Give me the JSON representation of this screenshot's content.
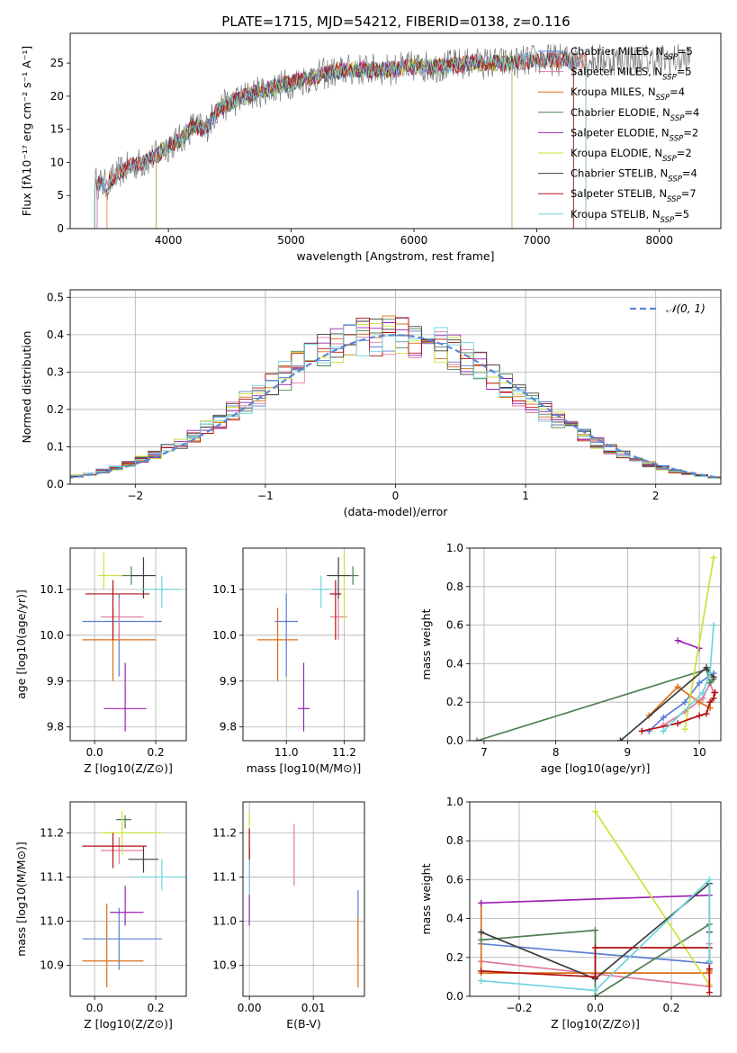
{
  "palette": {
    "chabrier_miles": "#5b7fd6",
    "salpeter_miles": "#e07a9f",
    "kroupa_miles": "#d96f1a",
    "chabrier_elodie": "#4f7f52",
    "salpeter_elodie": "#9a22b5",
    "kroupa_elodie": "#cfe03a",
    "chabrier_stelib": "#3f3f3f",
    "salpeter_stelib": "#b01010",
    "kroupa_stelib": "#6fd4dc"
  },
  "chart_data": [
    {
      "id": "spectrum",
      "type": "line",
      "title": "PLATE=1715, MJD=54212, FIBERID=0138, z=0.116",
      "xlabel": "wavelength [Angstrom, rest frame]",
      "ylabel": "Flux [fλ10⁻¹⁷ erg cm⁻² s⁻¹ A⁻¹]",
      "xlim": [
        3200,
        8500
      ],
      "ylim": [
        0,
        29.5
      ],
      "xticks": [
        4000,
        5000,
        6000,
        7000,
        8000
      ],
      "yticks": [
        0,
        5,
        10,
        15,
        20,
        25
      ],
      "legend_position": "top-right",
      "legend": [
        "Chabrier MILES, N_SSP=5",
        "Salpeter MILES, N_SSP=5",
        "Kroupa MILES, N_SSP=4",
        "Chabrier ELODIE, N_SSP=4",
        "Salpeter ELODIE, N_SSP=2",
        "Kroupa ELODIE, N_SSP=2",
        "Chabrier STELIB, N_SSP=4",
        "Salpeter STELIB, N_SSP=7",
        "Kroupa STELIB, N_SSP=5"
      ],
      "continuum": {
        "x": [
          3400,
          3500,
          3600,
          3700,
          3800,
          3900,
          4000,
          4100,
          4200,
          4300,
          4400,
          4500,
          4700,
          4900,
          5100,
          5300,
          5500,
          5800,
          6000,
          6200,
          6500,
          6800,
          7000,
          7200,
          7500,
          7800,
          8000,
          8200
        ],
        "y": [
          7,
          6.5,
          8.5,
          9.5,
          10,
          11,
          12.5,
          13.5,
          15.5,
          15,
          18,
          19,
          20.5,
          21.5,
          22.5,
          23.5,
          24,
          24,
          24.5,
          24.5,
          25,
          25,
          25.5,
          25.5,
          25.5,
          25.5,
          25.5,
          25.5
        ]
      }
    },
    {
      "id": "residuals",
      "type": "histogram",
      "xlabel": "(data-model)/error",
      "ylabel": "Normed distribution",
      "xlim": [
        -2.5,
        2.5
      ],
      "ylim": [
        0,
        0.52
      ],
      "xticks": [
        -2,
        -1,
        0,
        1,
        2
      ],
      "yticks": [
        0,
        0.1,
        0.2,
        0.3,
        0.4,
        0.5
      ],
      "legend_position": "top-right",
      "legend": [
        "N(0, 1)"
      ],
      "bin_width": 0.1
    },
    {
      "id": "age_vs_Z",
      "type": "errorbar",
      "xlabel": "Z [log10(Z/Z⊙)]",
      "ylabel": "age  [log10(age/yr)]",
      "xlim": [
        -0.08,
        0.3
      ],
      "ylim": [
        9.77,
        10.19
      ],
      "xticks": [
        0.0,
        0.2
      ],
      "yticks": [
        9.8,
        9.9,
        10.0,
        10.1
      ],
      "points": [
        {
          "s": "chabrier_miles",
          "x": 0.08,
          "xerr": [
            0.12,
            0.14
          ],
          "y": 10.03,
          "yerr": [
            0.12,
            0.06
          ]
        },
        {
          "s": "salpeter_miles",
          "x": 0.08,
          "xerr": [
            0.06,
            0.08
          ],
          "y": 10.04,
          "yerr": [
            0.05,
            0.04
          ]
        },
        {
          "s": "kroupa_miles",
          "x": 0.06,
          "xerr": [
            0.1,
            0.14
          ],
          "y": 9.99,
          "yerr": [
            0.09,
            0.07
          ]
        },
        {
          "s": "chabrier_elodie",
          "x": 0.12,
          "xerr": [
            0.04,
            0.04
          ],
          "y": 10.13,
          "yerr": [
            0.02,
            0.02
          ]
        },
        {
          "s": "salpeter_elodie",
          "x": 0.1,
          "xerr": [
            0.07,
            0.07
          ],
          "y": 9.84,
          "yerr": [
            0.05,
            0.1
          ]
        },
        {
          "s": "kroupa_elodie",
          "x": 0.03,
          "xerr": [
            0.02,
            0.06
          ],
          "y": 10.13,
          "yerr": [
            0.03,
            0.05
          ]
        },
        {
          "s": "chabrier_stelib",
          "x": 0.16,
          "xerr": [
            0.04,
            0.04
          ],
          "y": 10.13,
          "yerr": [
            0.05,
            0.04
          ]
        },
        {
          "s": "salpeter_stelib",
          "x": 0.06,
          "xerr": [
            0.09,
            0.12
          ],
          "y": 10.09,
          "yerr": [
            0.1,
            0.03
          ]
        },
        {
          "s": "kroupa_stelib",
          "x": 0.22,
          "xerr": [
            0.07,
            0.06
          ],
          "y": 10.1,
          "yerr": [
            0.04,
            0.03
          ]
        }
      ]
    },
    {
      "id": "age_vs_mass",
      "type": "errorbar",
      "xlabel": "mass [log10(M/M⊙)]",
      "ylabel": "",
      "xlim": [
        10.85,
        11.27
      ],
      "ylim": [
        9.77,
        10.19
      ],
      "xticks": [
        11.0,
        11.2
      ],
      "yticks": [
        9.8,
        9.9,
        10.0,
        10.1
      ],
      "points": [
        {
          "s": "chabrier_miles",
          "x": 11.0,
          "xerr": [
            0.04,
            0.04
          ],
          "y": 10.03,
          "yerr": [
            0.12,
            0.06
          ]
        },
        {
          "s": "salpeter_miles",
          "x": 11.18,
          "xerr": [
            0.03,
            0.03
          ],
          "y": 10.04,
          "yerr": [
            0.05,
            0.04
          ]
        },
        {
          "s": "kroupa_miles",
          "x": 10.97,
          "xerr": [
            0.07,
            0.07
          ],
          "y": 9.99,
          "yerr": [
            0.09,
            0.07
          ]
        },
        {
          "s": "chabrier_elodie",
          "x": 11.23,
          "xerr": [
            0.02,
            0.02
          ],
          "y": 10.13,
          "yerr": [
            0.02,
            0.02
          ]
        },
        {
          "s": "salpeter_elodie",
          "x": 11.06,
          "xerr": [
            0.02,
            0.02
          ],
          "y": 9.84,
          "yerr": [
            0.05,
            0.1
          ]
        },
        {
          "s": "kroupa_elodie",
          "x": 11.2,
          "xerr": [
            0.01,
            0.01
          ],
          "y": 10.13,
          "yerr": [
            0.1,
            0.05
          ]
        },
        {
          "s": "chabrier_stelib",
          "x": 11.18,
          "xerr": [
            0.04,
            0.04
          ],
          "y": 10.13,
          "yerr": [
            0.05,
            0.04
          ]
        },
        {
          "s": "salpeter_stelib",
          "x": 11.17,
          "xerr": [
            0.02,
            0.02
          ],
          "y": 10.09,
          "yerr": [
            0.1,
            0.03
          ]
        },
        {
          "s": "kroupa_stelib",
          "x": 11.12,
          "xerr": [
            0.03,
            0.03
          ],
          "y": 10.1,
          "yerr": [
            0.04,
            0.03
          ]
        }
      ]
    },
    {
      "id": "mass_weight_vs_age",
      "type": "line",
      "xlabel": "age  [log10(age/yr)]",
      "ylabel": "mass weight",
      "xlim": [
        6.8,
        10.3
      ],
      "ylim": [
        0,
        1.0
      ],
      "xticks": [
        7,
        8,
        9,
        10
      ],
      "yticks": [
        0.0,
        0.2,
        0.4,
        0.6,
        0.8,
        1.0
      ],
      "series": [
        {
          "s": "chabrier_miles",
          "x": [
            9.3,
            9.5,
            9.8,
            10.0,
            10.2
          ],
          "y": [
            0.05,
            0.12,
            0.2,
            0.3,
            0.35
          ]
        },
        {
          "s": "salpeter_miles",
          "x": [
            9.5,
            9.8,
            10.05,
            10.15,
            10.2
          ],
          "y": [
            0.08,
            0.15,
            0.22,
            0.3,
            0.25
          ]
        },
        {
          "s": "kroupa_miles",
          "x": [
            9.3,
            9.7,
            10.0,
            10.15
          ],
          "y": [
            0.13,
            0.28,
            0.2,
            0.17
          ]
        },
        {
          "s": "chabrier_elodie",
          "x": [
            6.9,
            10.1,
            10.15,
            10.2
          ],
          "y": [
            0.0,
            0.37,
            0.3,
            0.32
          ]
        },
        {
          "s": "salpeter_elodie",
          "x": [
            9.7,
            10.0
          ],
          "y": [
            0.52,
            0.48
          ]
        },
        {
          "s": "kroupa_elodie",
          "x": [
            9.8,
            10.2
          ],
          "y": [
            0.06,
            0.95
          ]
        },
        {
          "s": "chabrier_stelib",
          "x": [
            8.9,
            10.1,
            10.15,
            10.2
          ],
          "y": [
            0.0,
            0.38,
            0.35,
            0.33
          ]
        },
        {
          "s": "salpeter_stelib",
          "x": [
            9.2,
            9.7,
            10.0,
            10.1,
            10.15,
            10.2,
            10.22
          ],
          "y": [
            0.05,
            0.09,
            0.13,
            0.14,
            0.2,
            0.22,
            0.25
          ]
        },
        {
          "s": "kroupa_stelib",
          "x": [
            9.5,
            10.05,
            10.15,
            10.2
          ],
          "y": [
            0.05,
            0.25,
            0.35,
            0.6
          ]
        }
      ]
    },
    {
      "id": "mass_vs_Z",
      "type": "errorbar",
      "xlabel": "Z [log10(Z/Z⊙)]",
      "ylabel": "mass [log10(M/M⊙)]",
      "xlim": [
        -0.08,
        0.3
      ],
      "ylim": [
        10.83,
        11.27
      ],
      "xticks": [
        0.0,
        0.2
      ],
      "yticks": [
        10.9,
        11.0,
        11.1,
        11.2
      ],
      "points": [
        {
          "s": "chabrier_miles",
          "x": 0.08,
          "xerr": [
            0.12,
            0.14
          ],
          "y": 10.96,
          "yerr": [
            0.07,
            0.07
          ]
        },
        {
          "s": "salpeter_miles",
          "x": 0.08,
          "xerr": [
            0.06,
            0.08
          ],
          "y": 11.16,
          "yerr": [
            0.03,
            0.03
          ]
        },
        {
          "s": "kroupa_miles",
          "x": 0.04,
          "xerr": [
            0.08,
            0.12
          ],
          "y": 10.91,
          "yerr": [
            0.06,
            0.13
          ]
        },
        {
          "s": "chabrier_elodie",
          "x": 0.1,
          "xerr": [
            0.03,
            0.02
          ],
          "y": 11.23,
          "yerr": [
            0.02,
            0.01
          ]
        },
        {
          "s": "salpeter_elodie",
          "x": 0.1,
          "xerr": [
            0.05,
            0.06
          ],
          "y": 11.02,
          "yerr": [
            0.03,
            0.06
          ]
        },
        {
          "s": "kroupa_elodie",
          "x": 0.09,
          "xerr": [
            0.07,
            0.13
          ],
          "y": 11.2,
          "yerr": [
            0.05,
            0.05
          ]
        },
        {
          "s": "chabrier_stelib",
          "x": 0.16,
          "xerr": [
            0.05,
            0.05
          ],
          "y": 11.14,
          "yerr": [
            0.03,
            0.03
          ]
        },
        {
          "s": "salpeter_stelib",
          "x": 0.06,
          "xerr": [
            0.1,
            0.11
          ],
          "y": 11.17,
          "yerr": [
            0.05,
            0.03
          ]
        },
        {
          "s": "kroupa_stelib",
          "x": 0.22,
          "xerr": [
            0.09,
            0.08
          ],
          "y": 11.1,
          "yerr": [
            0.03,
            0.04
          ]
        }
      ]
    },
    {
      "id": "mass_vs_EBV",
      "type": "errorbar",
      "xlabel": "E(B-V)",
      "ylabel": "",
      "xlim": [
        -0.001,
        0.018
      ],
      "ylim": [
        10.83,
        11.27
      ],
      "xticks": [
        0.0,
        0.01
      ],
      "yticks": [
        10.9,
        11.0,
        11.1,
        11.2
      ],
      "points": [
        {
          "s": "chabrier_miles",
          "x": 0.017,
          "xerr": [
            0,
            0
          ],
          "y": 11.0,
          "yerr": [
            0.07,
            0.07
          ]
        },
        {
          "s": "salpeter_miles",
          "x": 0.007,
          "xerr": [
            0,
            0
          ],
          "y": 11.15,
          "yerr": [
            0.07,
            0.07
          ]
        },
        {
          "s": "kroupa_miles",
          "x": 0.017,
          "xerr": [
            0,
            0
          ],
          "y": 10.93,
          "yerr": [
            0.08,
            0.08
          ]
        },
        {
          "s": "chabrier_elodie",
          "x": 0.0,
          "xerr": [
            0,
            0
          ],
          "y": 11.23,
          "yerr": [
            0.01,
            0.01
          ]
        },
        {
          "s": "salpeter_elodie",
          "x": 0.0,
          "xerr": [
            0,
            0
          ],
          "y": 11.05,
          "yerr": [
            0.06,
            0.06
          ]
        },
        {
          "s": "kroupa_elodie",
          "x": 0.0,
          "xerr": [
            0,
            0
          ],
          "y": 11.2,
          "yerr": [
            0.05,
            0.05
          ]
        },
        {
          "s": "chabrier_stelib",
          "x": 0.0,
          "xerr": [
            0,
            0
          ],
          "y": 11.14,
          "yerr": [
            0.03,
            0.03
          ]
        },
        {
          "s": "salpeter_stelib",
          "x": 0.0,
          "xerr": [
            0,
            0
          ],
          "y": 11.17,
          "yerr": [
            0.04,
            0.04
          ]
        },
        {
          "s": "kroupa_stelib",
          "x": 0.0,
          "xerr": [
            0,
            0
          ],
          "y": 11.1,
          "yerr": [
            0.04,
            0.04
          ]
        }
      ]
    },
    {
      "id": "mass_weight_vs_Z",
      "type": "line",
      "xlabel": "Z [log10(Z/Z⊙)]",
      "ylabel": "mass weight",
      "xlim": [
        -0.33,
        0.33
      ],
      "ylim": [
        0,
        1.0
      ],
      "xticks": [
        -0.2,
        0.0,
        0.2
      ],
      "yticks": [
        0.0,
        0.2,
        0.4,
        0.6,
        0.8,
        1.0
      ],
      "series": [
        {
          "s": "chabrier_miles",
          "x": [
            -0.3,
            0.3,
            0.3
          ],
          "y": [
            0.27,
            0.17,
            0.18
          ]
        },
        {
          "s": "salpeter_miles",
          "x": [
            -0.3,
            0.3,
            0.3
          ],
          "y": [
            0.18,
            0.05,
            0.27
          ]
        },
        {
          "s": "kroupa_miles",
          "x": [
            -0.3,
            -0.3,
            0.3,
            0.3
          ],
          "y": [
            0.48,
            0.12,
            0.12,
            0.13
          ]
        },
        {
          "s": "chabrier_elodie",
          "x": [
            -0.3,
            0.0,
            0.0,
            0.3
          ],
          "y": [
            0.29,
            0.34,
            0.0,
            0.37
          ]
        },
        {
          "s": "salpeter_elodie",
          "x": [
            -0.3,
            0.3
          ],
          "y": [
            0.48,
            0.52
          ]
        },
        {
          "s": "kroupa_elodie",
          "x": [
            0.0,
            0.3
          ],
          "y": [
            0.95,
            0.06
          ]
        },
        {
          "s": "chabrier_stelib",
          "x": [
            -0.3,
            0.0,
            0.3,
            0.3
          ],
          "y": [
            0.33,
            0.09,
            0.58,
            0.33
          ]
        },
        {
          "s": "salpeter_stelib",
          "x": [
            -0.3,
            0.0,
            0.0,
            0.3,
            0.3,
            0.3
          ],
          "y": [
            0.13,
            0.1,
            0.25,
            0.25,
            0.14,
            0.02
          ]
        },
        {
          "s": "kroupa_stelib",
          "x": [
            -0.3,
            0.0,
            0.3,
            0.3
          ],
          "y": [
            0.08,
            0.03,
            0.6,
            0.18
          ]
        }
      ]
    }
  ]
}
